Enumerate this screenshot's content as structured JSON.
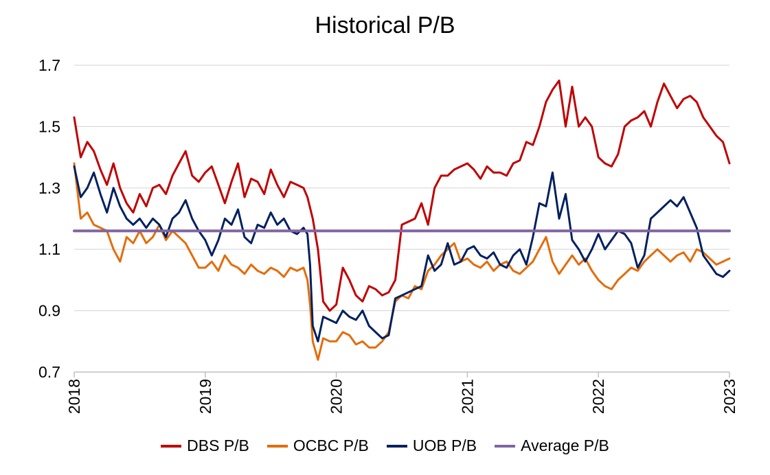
{
  "chart_data": {
    "type": "line",
    "title": "Historical P/B",
    "xlabel": "",
    "ylabel": "",
    "xlim": [
      2018,
      2023
    ],
    "ylim": [
      0.7,
      1.7
    ],
    "yticks": [
      "0.7",
      "0.9",
      "1.1",
      "1.3",
      "1.5",
      "1.7"
    ],
    "xticks": [
      "2018",
      "2019",
      "2020",
      "2021",
      "2022",
      "2023"
    ],
    "grid": "horizontal",
    "legend_position": "bottom",
    "series": [
      {
        "name": "DBS P/B",
        "color": "#C00000",
        "x": [
          2018.0,
          2018.05,
          2018.1,
          2018.15,
          2018.2,
          2018.25,
          2018.3,
          2018.35,
          2018.4,
          2018.45,
          2018.5,
          2018.55,
          2018.6,
          2018.65,
          2018.7,
          2018.75,
          2018.8,
          2018.85,
          2018.9,
          2018.95,
          2019.0,
          2019.05,
          2019.1,
          2019.15,
          2019.2,
          2019.25,
          2019.3,
          2019.35,
          2019.4,
          2019.45,
          2019.5,
          2019.55,
          2019.6,
          2019.65,
          2019.7,
          2019.75,
          2019.78,
          2019.82,
          2019.86,
          2019.9,
          2019.95,
          2020.0,
          2020.05,
          2020.1,
          2020.15,
          2020.2,
          2020.25,
          2020.3,
          2020.35,
          2020.4,
          2020.45,
          2020.5,
          2020.55,
          2020.6,
          2020.65,
          2020.7,
          2020.75,
          2020.8,
          2020.85,
          2020.9,
          2020.95,
          2021.0,
          2021.05,
          2021.1,
          2021.15,
          2021.2,
          2021.25,
          2021.3,
          2021.35,
          2021.4,
          2021.45,
          2021.5,
          2021.55,
          2021.6,
          2021.65,
          2021.7,
          2021.75,
          2021.8,
          2021.85,
          2021.9,
          2021.95,
          2022.0,
          2022.05,
          2022.1,
          2022.15,
          2022.2,
          2022.25,
          2022.3,
          2022.35,
          2022.4,
          2022.45,
          2022.5,
          2022.55,
          2022.6,
          2022.65,
          2022.7,
          2022.75,
          2022.8,
          2022.85,
          2022.9,
          2022.95,
          2023.0
        ],
        "values": [
          1.53,
          1.4,
          1.45,
          1.42,
          1.36,
          1.31,
          1.38,
          1.3,
          1.25,
          1.22,
          1.28,
          1.24,
          1.3,
          1.31,
          1.28,
          1.34,
          1.38,
          1.42,
          1.34,
          1.32,
          1.35,
          1.37,
          1.31,
          1.25,
          1.32,
          1.38,
          1.27,
          1.33,
          1.32,
          1.28,
          1.36,
          1.31,
          1.27,
          1.32,
          1.31,
          1.3,
          1.27,
          1.2,
          1.1,
          0.93,
          0.9,
          0.92,
          1.04,
          1.0,
          0.95,
          0.93,
          0.98,
          0.97,
          0.95,
          0.96,
          1.0,
          1.18,
          1.19,
          1.2,
          1.25,
          1.18,
          1.3,
          1.34,
          1.34,
          1.36,
          1.37,
          1.38,
          1.36,
          1.33,
          1.37,
          1.35,
          1.35,
          1.34,
          1.38,
          1.39,
          1.45,
          1.44,
          1.5,
          1.58,
          1.62,
          1.65,
          1.5,
          1.63,
          1.5,
          1.53,
          1.5,
          1.4,
          1.38,
          1.37,
          1.41,
          1.5,
          1.52,
          1.53,
          1.55,
          1.5,
          1.58,
          1.64,
          1.6,
          1.56,
          1.59,
          1.6,
          1.58,
          1.53,
          1.5,
          1.47,
          1.45,
          1.38
        ]
      },
      {
        "name": "OCBC P/B",
        "color": "#E46C0A",
        "x": [
          2018.0,
          2018.05,
          2018.1,
          2018.15,
          2018.2,
          2018.25,
          2018.3,
          2018.35,
          2018.4,
          2018.45,
          2018.5,
          2018.55,
          2018.6,
          2018.65,
          2018.7,
          2018.75,
          2018.8,
          2018.85,
          2018.9,
          2018.95,
          2019.0,
          2019.05,
          2019.1,
          2019.15,
          2019.2,
          2019.25,
          2019.3,
          2019.35,
          2019.4,
          2019.45,
          2019.5,
          2019.55,
          2019.6,
          2019.65,
          2019.7,
          2019.75,
          2019.78,
          2019.8,
          2019.82,
          2019.86,
          2019.9,
          2019.95,
          2020.0,
          2020.05,
          2020.1,
          2020.15,
          2020.2,
          2020.25,
          2020.3,
          2020.35,
          2020.4,
          2020.45,
          2020.5,
          2020.55,
          2020.6,
          2020.65,
          2020.7,
          2020.75,
          2020.8,
          2020.85,
          2020.9,
          2020.95,
          2021.0,
          2021.05,
          2021.1,
          2021.15,
          2021.2,
          2021.25,
          2021.3,
          2021.35,
          2021.4,
          2021.45,
          2021.5,
          2021.55,
          2021.6,
          2021.65,
          2021.7,
          2021.75,
          2021.8,
          2021.85,
          2021.9,
          2021.95,
          2022.0,
          2022.05,
          2022.1,
          2022.15,
          2022.2,
          2022.25,
          2022.3,
          2022.35,
          2022.4,
          2022.45,
          2022.5,
          2022.55,
          2022.6,
          2022.65,
          2022.7,
          2022.75,
          2022.8,
          2022.85,
          2022.9,
          2022.95,
          2023.0
        ],
        "values": [
          1.38,
          1.2,
          1.22,
          1.18,
          1.17,
          1.16,
          1.1,
          1.06,
          1.14,
          1.12,
          1.16,
          1.12,
          1.14,
          1.18,
          1.13,
          1.16,
          1.14,
          1.12,
          1.08,
          1.04,
          1.04,
          1.06,
          1.03,
          1.08,
          1.05,
          1.04,
          1.02,
          1.05,
          1.03,
          1.02,
          1.04,
          1.03,
          1.01,
          1.04,
          1.03,
          1.04,
          1.0,
          0.92,
          0.8,
          0.74,
          0.81,
          0.8,
          0.8,
          0.83,
          0.82,
          0.79,
          0.8,
          0.78,
          0.78,
          0.8,
          0.83,
          0.93,
          0.95,
          0.94,
          0.98,
          0.97,
          1.03,
          1.05,
          1.08,
          1.1,
          1.12,
          1.06,
          1.07,
          1.05,
          1.04,
          1.06,
          1.03,
          1.05,
          1.06,
          1.03,
          1.02,
          1.04,
          1.06,
          1.1,
          1.14,
          1.06,
          1.02,
          1.05,
          1.08,
          1.05,
          1.07,
          1.03,
          1.0,
          0.98,
          0.97,
          1.0,
          1.02,
          1.04,
          1.03,
          1.06,
          1.08,
          1.1,
          1.08,
          1.06,
          1.08,
          1.09,
          1.06,
          1.1,
          1.09,
          1.07,
          1.05,
          1.06,
          1.07
        ]
      },
      {
        "name": "UOB P/B",
        "color": "#002060",
        "x": [
          2018.0,
          2018.05,
          2018.1,
          2018.15,
          2018.2,
          2018.25,
          2018.3,
          2018.35,
          2018.4,
          2018.45,
          2018.5,
          2018.55,
          2018.6,
          2018.65,
          2018.7,
          2018.75,
          2018.8,
          2018.85,
          2018.9,
          2018.95,
          2019.0,
          2019.05,
          2019.1,
          2019.15,
          2019.2,
          2019.25,
          2019.3,
          2019.35,
          2019.4,
          2019.45,
          2019.5,
          2019.55,
          2019.6,
          2019.65,
          2019.7,
          2019.75,
          2019.78,
          2019.8,
          2019.82,
          2019.86,
          2019.9,
          2019.95,
          2020.0,
          2020.05,
          2020.1,
          2020.15,
          2020.2,
          2020.25,
          2020.3,
          2020.35,
          2020.4,
          2020.45,
          2020.5,
          2020.55,
          2020.6,
          2020.65,
          2020.7,
          2020.75,
          2020.8,
          2020.85,
          2020.9,
          2020.95,
          2021.0,
          2021.05,
          2021.1,
          2021.15,
          2021.2,
          2021.25,
          2021.3,
          2021.35,
          2021.4,
          2021.45,
          2021.5,
          2021.55,
          2021.6,
          2021.65,
          2021.7,
          2021.75,
          2021.8,
          2021.85,
          2021.9,
          2021.95,
          2022.0,
          2022.05,
          2022.1,
          2022.15,
          2022.2,
          2022.25,
          2022.3,
          2022.35,
          2022.4,
          2022.45,
          2022.5,
          2022.55,
          2022.6,
          2022.65,
          2022.7,
          2022.75,
          2022.8,
          2022.85,
          2022.9,
          2022.95,
          2023.0
        ],
        "values": [
          1.37,
          1.27,
          1.3,
          1.35,
          1.28,
          1.22,
          1.3,
          1.24,
          1.2,
          1.18,
          1.2,
          1.17,
          1.2,
          1.18,
          1.14,
          1.2,
          1.22,
          1.26,
          1.2,
          1.16,
          1.13,
          1.08,
          1.13,
          1.2,
          1.18,
          1.23,
          1.14,
          1.12,
          1.18,
          1.17,
          1.22,
          1.18,
          1.2,
          1.16,
          1.15,
          1.17,
          1.15,
          1.05,
          0.85,
          0.8,
          0.88,
          0.87,
          0.86,
          0.9,
          0.88,
          0.87,
          0.9,
          0.85,
          0.83,
          0.81,
          0.82,
          0.94,
          0.95,
          0.96,
          0.97,
          0.98,
          1.08,
          1.03,
          1.05,
          1.12,
          1.05,
          1.06,
          1.1,
          1.11,
          1.08,
          1.07,
          1.09,
          1.05,
          1.04,
          1.08,
          1.1,
          1.05,
          1.14,
          1.25,
          1.24,
          1.35,
          1.2,
          1.28,
          1.13,
          1.1,
          1.06,
          1.1,
          1.15,
          1.1,
          1.13,
          1.16,
          1.15,
          1.12,
          1.04,
          1.08,
          1.2,
          1.22,
          1.24,
          1.26,
          1.24,
          1.27,
          1.22,
          1.17,
          1.08,
          1.05,
          1.02,
          1.01,
          1.03
        ]
      },
      {
        "name": "Average P/B",
        "color": "#8064A2",
        "x": [
          2018,
          2023
        ],
        "values": [
          1.16,
          1.16
        ]
      }
    ]
  }
}
